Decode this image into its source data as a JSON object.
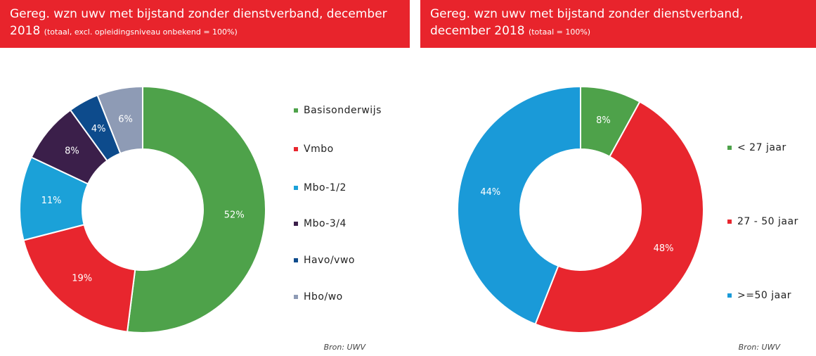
{
  "chart_data": [
    {
      "type": "donut",
      "title": "Gereg. wzn uwv met bijstand zonder dienstverband, december 2018",
      "subtitle": "(totaal, excl. opleidingsniveau onbekend = 100%)",
      "categories": [
        "Basisonderwijs",
        "Vmbo",
        "Mbo-1/2",
        "Mbo-3/4",
        "Havo/vwo",
        "Hbo/wo"
      ],
      "values": [
        52,
        19,
        11,
        8,
        4,
        6
      ],
      "value_labels": [
        "52%",
        "19%",
        "11%",
        "8%",
        "4%",
        "6%"
      ],
      "colors": [
        "#4ea24a",
        "#e8262e",
        "#1ba1d8",
        "#3b1f4a",
        "#0d4b8c",
        "#8e9bb5"
      ],
      "source": "Bron: UWV"
    },
    {
      "type": "donut",
      "title": "Gereg. wzn uwv met bijstand zonder dienstverband, december 2018",
      "subtitle": "(totaal = 100%)",
      "categories": [
        "< 27 jaar",
        "27 - 50 jaar",
        ">=50 jaar"
      ],
      "values": [
        8,
        48,
        44
      ],
      "value_labels": [
        "8%",
        "48%",
        "44%"
      ],
      "colors": [
        "#4ea24a",
        "#e8262e",
        "#1a9ad8"
      ],
      "source": "Bron: UWV"
    }
  ]
}
